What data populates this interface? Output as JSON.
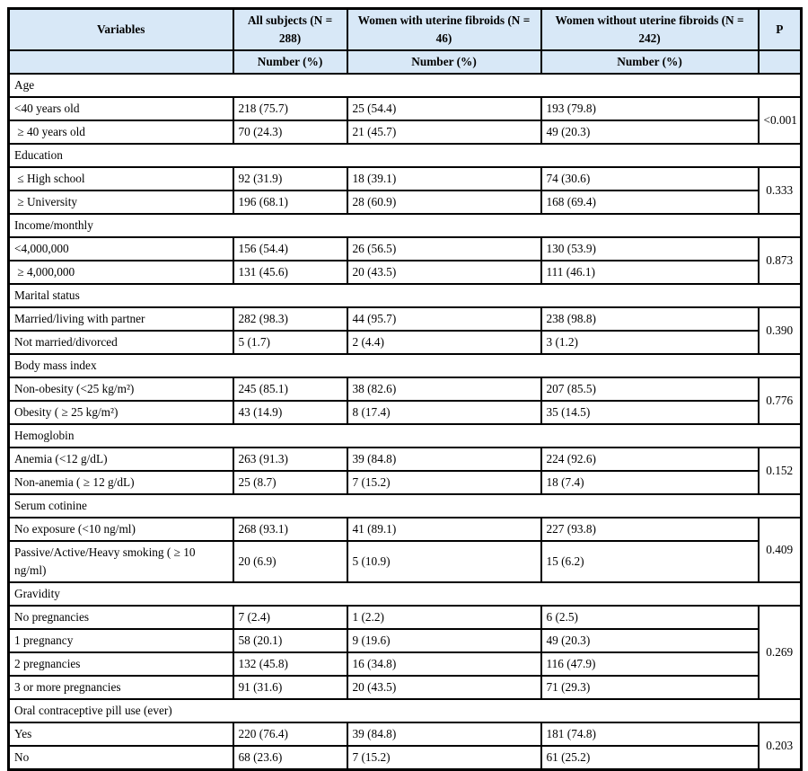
{
  "colors": {
    "header_bg": "#d8e8f7",
    "border": "#000000",
    "text": "#000000"
  },
  "table": {
    "columns": {
      "variables": "Variables",
      "all": "All subjects (N = 288)",
      "with": "Women with uterine fibroids (N = 46)",
      "without": "Women without uterine fibroids (N = 242)",
      "p": "P"
    },
    "subheader": "Number (%)",
    "sections": [
      {
        "title": "Age",
        "p": "<0.001",
        "rows": [
          {
            "label": "<40 years old",
            "all": "218 (75.7)",
            "with": "25 (54.4)",
            "without": "193 (79.8)"
          },
          {
            "label": " ≥ 40 years old",
            "all": "70 (24.3)",
            "with": "21 (45.7)",
            "without": "49 (20.3)"
          }
        ]
      },
      {
        "title": "Education",
        "p": "0.333",
        "rows": [
          {
            "label": " ≤ High school",
            "all": "92 (31.9)",
            "with": "18 (39.1)",
            "without": "74 (30.6)"
          },
          {
            "label": " ≥ University",
            "all": "196 (68.1)",
            "with": "28 (60.9)",
            "without": "168 (69.4)"
          }
        ]
      },
      {
        "title": "Income/monthly",
        "p": "0.873",
        "rows": [
          {
            "label": "<4,000,000",
            "all": "156 (54.4)",
            "with": "26 (56.5)",
            "without": "130 (53.9)"
          },
          {
            "label": " ≥ 4,000,000",
            "all": "131 (45.6)",
            "with": "20 (43.5)",
            "without": "111 (46.1)"
          }
        ]
      },
      {
        "title": "Marital status",
        "p": "0.390",
        "rows": [
          {
            "label": "Married/living with partner",
            "all": "282 (98.3)",
            "with": "44 (95.7)",
            "without": "238 (98.8)"
          },
          {
            "label": "Not married/divorced",
            "all": "5 (1.7)",
            "with": "2 (4.4)",
            "without": "3 (1.2)"
          }
        ]
      },
      {
        "title": "Body mass index",
        "p": "0.776",
        "rows": [
          {
            "label": "Non-obesity (<25 kg/m²)",
            "all": "245 (85.1)",
            "with": "38 (82.6)",
            "without": "207 (85.5)"
          },
          {
            "label": "Obesity ( ≥ 25 kg/m²)",
            "all": "43 (14.9)",
            "with": "8 (17.4)",
            "without": "35 (14.5)"
          }
        ]
      },
      {
        "title": "Hemoglobin",
        "p": "0.152",
        "rows": [
          {
            "label": "Anemia (<12 g/dL)",
            "all": "263 (91.3)",
            "with": "39 (84.8)",
            "without": "224 (92.6)"
          },
          {
            "label": "Non-anemia ( ≥ 12 g/dL)",
            "all": "25 (8.7)",
            "with": "7 (15.2)",
            "without": "18 (7.4)"
          }
        ]
      },
      {
        "title": "Serum cotinine",
        "p": "0.409",
        "rows": [
          {
            "label": "No exposure (<10 ng/ml)",
            "all": "268 (93.1)",
            "with": "41 (89.1)",
            "without": "227 (93.8)"
          },
          {
            "label": "Passive/Active/Heavy smoking ( ≥ 10 ng/ml)",
            "all": "20 (6.9)",
            "with": "5 (10.9)",
            "without": "15 (6.2)"
          }
        ]
      },
      {
        "title": "Gravidity",
        "p": "0.269",
        "rows": [
          {
            "label": "No pregnancies",
            "all": "7 (2.4)",
            "with": "1 (2.2)",
            "without": "6 (2.5)"
          },
          {
            "label": "1 pregnancy",
            "all": "58 (20.1)",
            "with": "9 (19.6)",
            "without": "49 (20.3)"
          },
          {
            "label": "2 pregnancies",
            "all": "132 (45.8)",
            "with": "16 (34.8)",
            "without": "116 (47.9)"
          },
          {
            "label": "3 or more pregnancies",
            "all": "91 (31.6)",
            "with": "20 (43.5)",
            "without": "71 (29.3)"
          }
        ]
      },
      {
        "title": "Oral contraceptive pill use (ever)",
        "p": "0.203",
        "rows": [
          {
            "label": "Yes",
            "all": "220 (76.4)",
            "with": "39 (84.8)",
            "without": "181 (74.8)"
          },
          {
            "label": "No",
            "all": "68 (23.6)",
            "with": "7 (15.2)",
            "without": "61 (25.2)"
          }
        ]
      }
    ]
  }
}
